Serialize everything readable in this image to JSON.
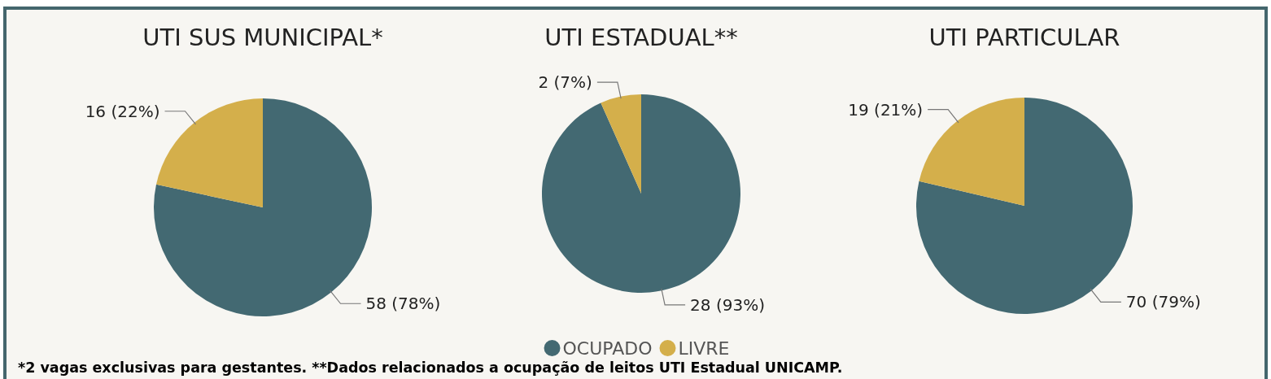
{
  "chart_data": [
    {
      "type": "pie",
      "title": "UTI SUS MUNICIPAL*",
      "categories": [
        null,
        null
      ],
      "values": [
        58,
        16
      ],
      "colors": [
        "#436972",
        "#d4af4b"
      ],
      "value_labels": [
        "58 (78%)",
        "16 (22%)"
      ],
      "annotations": [
        "*2 vagas exclusivas para gestantes. **Dados relacionados a ocupação de leitos UTI Estadual UNICAMP."
      ]
    },
    {
      "type": "pie",
      "title": "UTI ESTADUAL**",
      "categories": [
        "OCUPADO",
        "LIVRE"
      ],
      "values": [
        28,
        2
      ],
      "colors": [
        "#436972",
        "#d4af4b"
      ],
      "value_labels": [
        "28 (93%)",
        "2 (7%)"
      ],
      "legend": "bottom"
    },
    {
      "type": "pie",
      "title": "UTI PARTICULAR",
      "categories": [
        null,
        null
      ],
      "values": [
        70,
        19
      ],
      "colors": [
        "#436972",
        "#d4af4b"
      ],
      "value_labels": [
        "70 (79%)",
        "19 (21%)"
      ]
    }
  ]
}
